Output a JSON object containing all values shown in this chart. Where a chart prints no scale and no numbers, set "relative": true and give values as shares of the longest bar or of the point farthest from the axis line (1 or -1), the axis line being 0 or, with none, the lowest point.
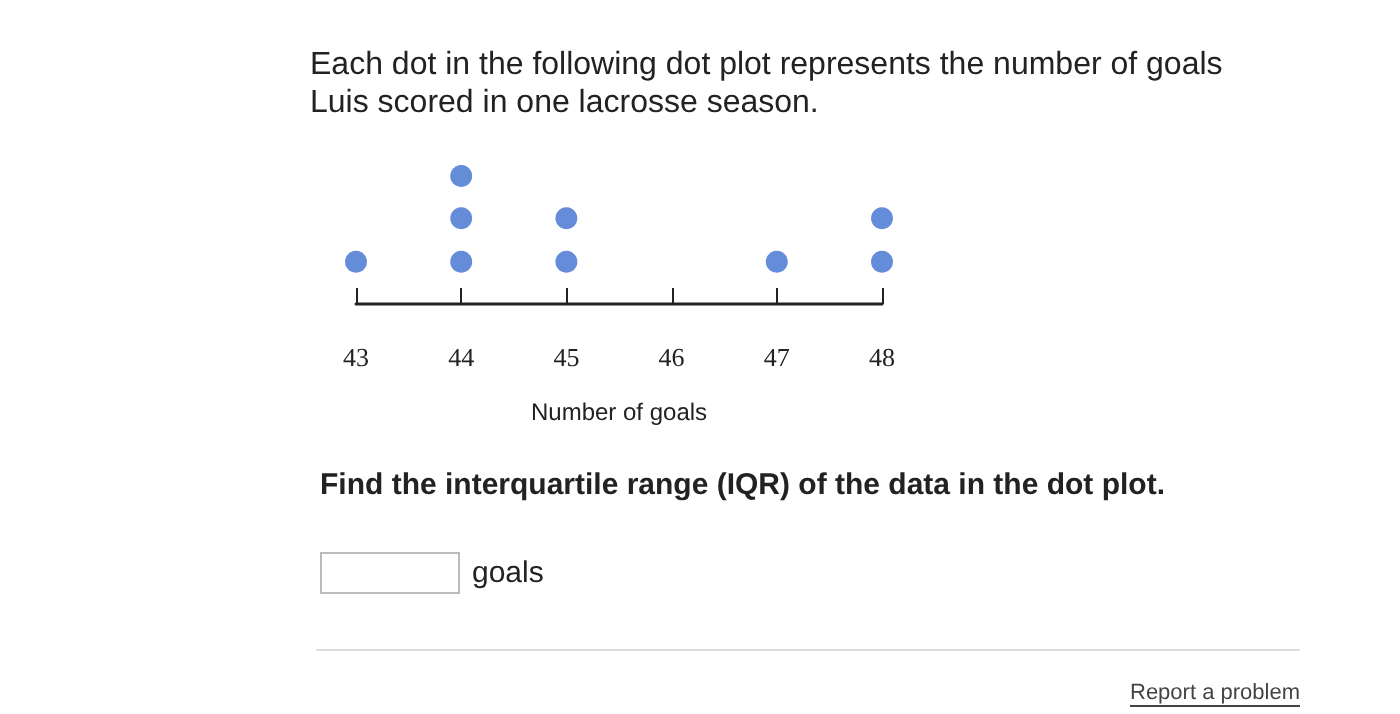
{
  "chart_data": {
    "type": "scatter",
    "title": "Each dot in the following dot plot represents the number of goals Luis scored in one lacrosse season.",
    "xlabel": "Number of goals",
    "x": [
      43,
      44,
      44,
      44,
      45,
      45,
      47,
      48,
      48
    ],
    "values": [
      0.33,
      0.33,
      0.67,
      1,
      0.33,
      0.67,
      0.33,
      0.33,
      0.67
    ],
    "relative": true,
    "color": "#3f6fd0",
    "marker": "circle",
    "xlim": [
      43,
      48
    ],
    "xticks": [
      43,
      44,
      45,
      46,
      47,
      48
    ],
    "grid": false,
    "annotations": [
      "Find the interquartile range (IQR) of the data in the dot plot.",
      "goals",
      "Report a problem"
    ]
  }
}
